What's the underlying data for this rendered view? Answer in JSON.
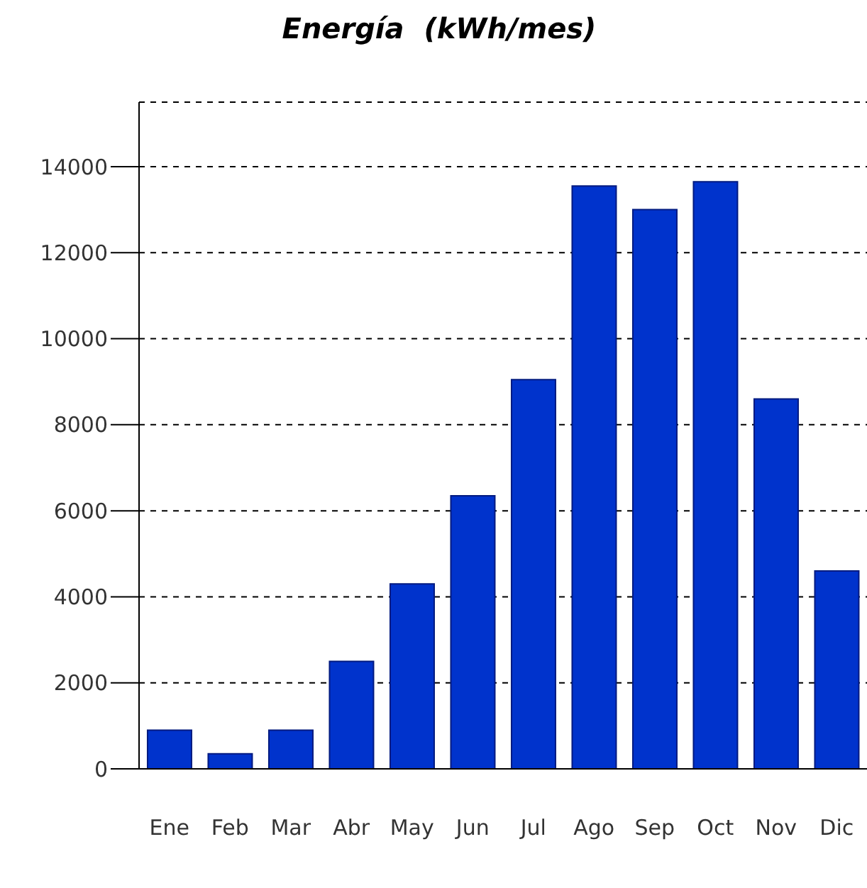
{
  "chart_data": {
    "type": "bar",
    "title": "Energía  (kWh/mes)",
    "categories": [
      "Ene",
      "Feb",
      "Mar",
      "Abr",
      "May",
      "Jun",
      "Jul",
      "Ago",
      "Sep",
      "Oct",
      "Nov",
      "Dic"
    ],
    "values": [
      900,
      350,
      900,
      2500,
      4300,
      6350,
      9050,
      13550,
      13000,
      13650,
      8600,
      4600
    ],
    "color": "#0033cc",
    "ylim": [
      0,
      15500
    ],
    "yticks": [
      0,
      2000,
      4000,
      6000,
      8000,
      10000,
      12000,
      14000
    ],
    "grid": "y"
  }
}
